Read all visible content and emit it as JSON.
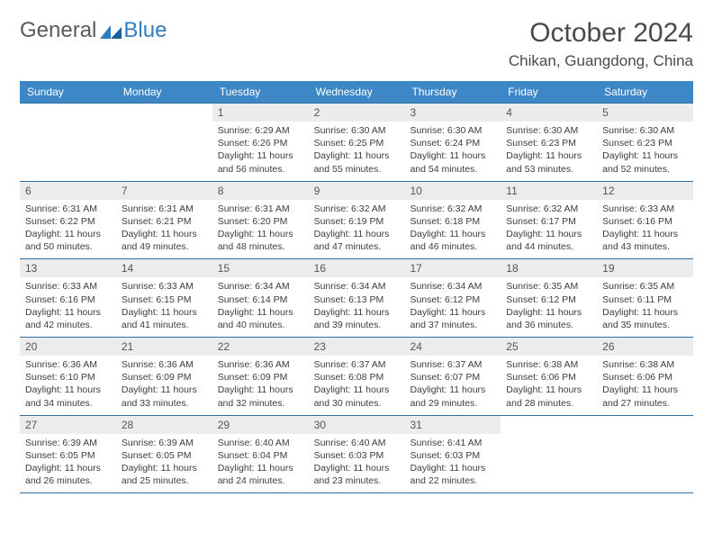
{
  "brand": {
    "part1": "General",
    "part2": "Blue"
  },
  "title": "October 2024",
  "location": "Chikan, Guangdong, China",
  "colors": {
    "header_bg": "#3d87c7",
    "header_text": "#ffffff",
    "divider": "#2f6da5",
    "daynum_bg": "#ececec",
    "body_text": "#3d3d3d",
    "title_text": "#4a4a4a"
  },
  "dow": [
    "Sunday",
    "Monday",
    "Tuesday",
    "Wednesday",
    "Thursday",
    "Friday",
    "Saturday"
  ],
  "days": [
    {
      "n": 1,
      "sr": "6:29 AM",
      "ss": "6:26 PM",
      "dl": "11 hours and 56 minutes."
    },
    {
      "n": 2,
      "sr": "6:30 AM",
      "ss": "6:25 PM",
      "dl": "11 hours and 55 minutes."
    },
    {
      "n": 3,
      "sr": "6:30 AM",
      "ss": "6:24 PM",
      "dl": "11 hours and 54 minutes."
    },
    {
      "n": 4,
      "sr": "6:30 AM",
      "ss": "6:23 PM",
      "dl": "11 hours and 53 minutes."
    },
    {
      "n": 5,
      "sr": "6:30 AM",
      "ss": "6:23 PM",
      "dl": "11 hours and 52 minutes."
    },
    {
      "n": 6,
      "sr": "6:31 AM",
      "ss": "6:22 PM",
      "dl": "11 hours and 50 minutes."
    },
    {
      "n": 7,
      "sr": "6:31 AM",
      "ss": "6:21 PM",
      "dl": "11 hours and 49 minutes."
    },
    {
      "n": 8,
      "sr": "6:31 AM",
      "ss": "6:20 PM",
      "dl": "11 hours and 48 minutes."
    },
    {
      "n": 9,
      "sr": "6:32 AM",
      "ss": "6:19 PM",
      "dl": "11 hours and 47 minutes."
    },
    {
      "n": 10,
      "sr": "6:32 AM",
      "ss": "6:18 PM",
      "dl": "11 hours and 46 minutes."
    },
    {
      "n": 11,
      "sr": "6:32 AM",
      "ss": "6:17 PM",
      "dl": "11 hours and 44 minutes."
    },
    {
      "n": 12,
      "sr": "6:33 AM",
      "ss": "6:16 PM",
      "dl": "11 hours and 43 minutes."
    },
    {
      "n": 13,
      "sr": "6:33 AM",
      "ss": "6:16 PM",
      "dl": "11 hours and 42 minutes."
    },
    {
      "n": 14,
      "sr": "6:33 AM",
      "ss": "6:15 PM",
      "dl": "11 hours and 41 minutes."
    },
    {
      "n": 15,
      "sr": "6:34 AM",
      "ss": "6:14 PM",
      "dl": "11 hours and 40 minutes."
    },
    {
      "n": 16,
      "sr": "6:34 AM",
      "ss": "6:13 PM",
      "dl": "11 hours and 39 minutes."
    },
    {
      "n": 17,
      "sr": "6:34 AM",
      "ss": "6:12 PM",
      "dl": "11 hours and 37 minutes."
    },
    {
      "n": 18,
      "sr": "6:35 AM",
      "ss": "6:12 PM",
      "dl": "11 hours and 36 minutes."
    },
    {
      "n": 19,
      "sr": "6:35 AM",
      "ss": "6:11 PM",
      "dl": "11 hours and 35 minutes."
    },
    {
      "n": 20,
      "sr": "6:36 AM",
      "ss": "6:10 PM",
      "dl": "11 hours and 34 minutes."
    },
    {
      "n": 21,
      "sr": "6:36 AM",
      "ss": "6:09 PM",
      "dl": "11 hours and 33 minutes."
    },
    {
      "n": 22,
      "sr": "6:36 AM",
      "ss": "6:09 PM",
      "dl": "11 hours and 32 minutes."
    },
    {
      "n": 23,
      "sr": "6:37 AM",
      "ss": "6:08 PM",
      "dl": "11 hours and 30 minutes."
    },
    {
      "n": 24,
      "sr": "6:37 AM",
      "ss": "6:07 PM",
      "dl": "11 hours and 29 minutes."
    },
    {
      "n": 25,
      "sr": "6:38 AM",
      "ss": "6:06 PM",
      "dl": "11 hours and 28 minutes."
    },
    {
      "n": 26,
      "sr": "6:38 AM",
      "ss": "6:06 PM",
      "dl": "11 hours and 27 minutes."
    },
    {
      "n": 27,
      "sr": "6:39 AM",
      "ss": "6:05 PM",
      "dl": "11 hours and 26 minutes."
    },
    {
      "n": 28,
      "sr": "6:39 AM",
      "ss": "6:05 PM",
      "dl": "11 hours and 25 minutes."
    },
    {
      "n": 29,
      "sr": "6:40 AM",
      "ss": "6:04 PM",
      "dl": "11 hours and 24 minutes."
    },
    {
      "n": 30,
      "sr": "6:40 AM",
      "ss": "6:03 PM",
      "dl": "11 hours and 23 minutes."
    },
    {
      "n": 31,
      "sr": "6:41 AM",
      "ss": "6:03 PM",
      "dl": "11 hours and 22 minutes."
    }
  ],
  "labels": {
    "sunrise": "Sunrise:",
    "sunset": "Sunset:",
    "daylight": "Daylight:"
  },
  "layout": {
    "leading_blanks": 2,
    "trailing_blanks": 2,
    "weeks": 5
  }
}
